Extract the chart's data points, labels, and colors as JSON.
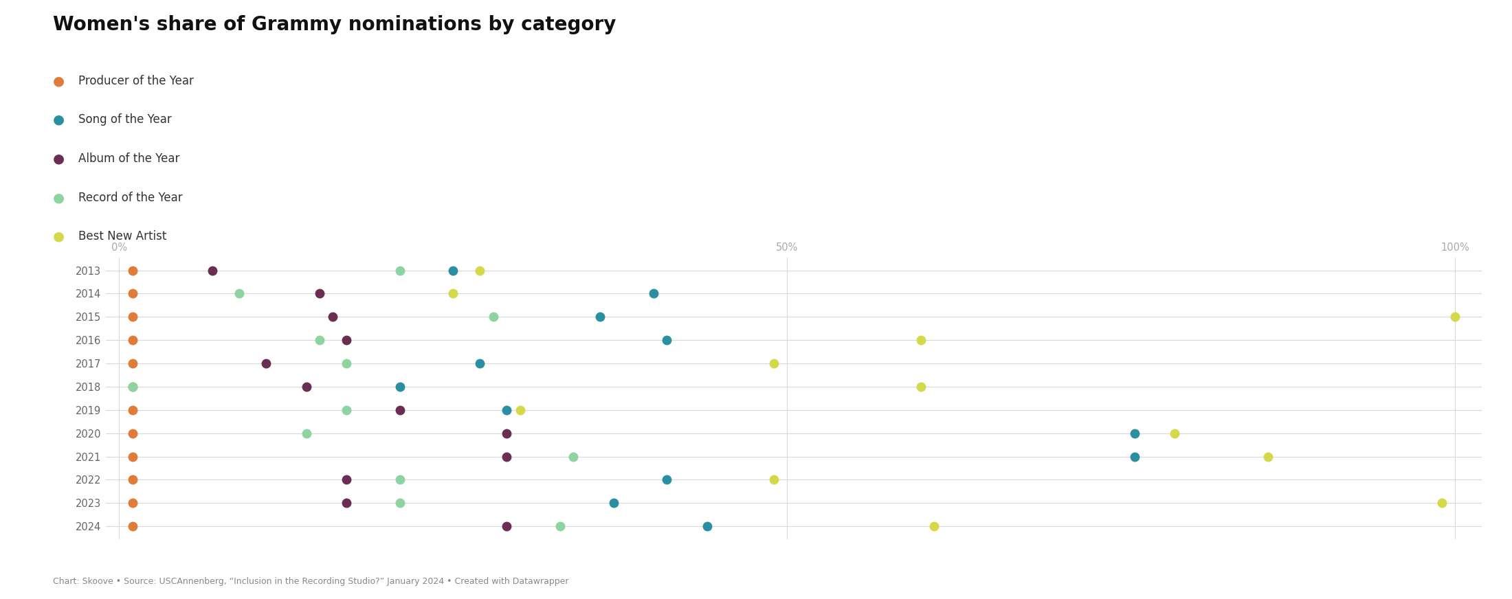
{
  "title": "Women's share of Grammy nominations by category",
  "subtitle": "Chart: Skoove • Source: USCAnnenberg, “Inclusion in the Recording Studio?” January 2024 • Created with Datawrapper",
  "categories": {
    "Producer of the Year": {
      "color": "#e07b39"
    },
    "Song of the Year": {
      "color": "#2a8fa0"
    },
    "Album of the Year": {
      "color": "#6b2d52"
    },
    "Record of the Year": {
      "color": "#8ed4a0"
    },
    "Best New Artist": {
      "color": "#d4d94a"
    }
  },
  "data": {
    "2013": {
      "Producer of the Year": 0.01,
      "Album of the Year": 0.07,
      "Record of the Year": 0.21,
      "Song of the Year": 0.25,
      "Best New Artist": 0.27
    },
    "2014": {
      "Producer of the Year": 0.01,
      "Record of the Year": 0.09,
      "Album of the Year": 0.15,
      "Best New Artist": 0.25,
      "Song of the Year": 0.4
    },
    "2015": {
      "Producer of the Year": 0.01,
      "Album of the Year": 0.16,
      "Record of the Year": 0.28,
      "Song of the Year": 0.36,
      "Best New Artist": 1.0
    },
    "2016": {
      "Producer of the Year": 0.01,
      "Record of the Year": 0.15,
      "Album of the Year": 0.17,
      "Song of the Year": 0.41,
      "Best New Artist": 0.6
    },
    "2017": {
      "Producer of the Year": 0.01,
      "Album of the Year": 0.11,
      "Record of the Year": 0.17,
      "Song of the Year": 0.27,
      "Best New Artist": 0.49
    },
    "2018": {
      "Producer of the Year": 0.01,
      "Record of the Year": 0.01,
      "Album of the Year": 0.14,
      "Song of the Year": 0.21,
      "Best New Artist": 0.6
    },
    "2019": {
      "Producer of the Year": 0.01,
      "Record of the Year": 0.17,
      "Album of the Year": 0.21,
      "Song of the Year": 0.29,
      "Best New Artist": 0.3
    },
    "2020": {
      "Producer of the Year": 0.01,
      "Record of the Year": 0.14,
      "Album of the Year": 0.29,
      "Song of the Year": 0.76,
      "Best New Artist": 0.79
    },
    "2021": {
      "Producer of the Year": 0.01,
      "Album of the Year": 0.29,
      "Record of the Year": 0.34,
      "Song of the Year": 0.76,
      "Best New Artist": 0.86
    },
    "2022": {
      "Producer of the Year": 0.01,
      "Album of the Year": 0.17,
      "Record of the Year": 0.21,
      "Song of the Year": 0.41,
      "Best New Artist": 0.49
    },
    "2023": {
      "Producer of the Year": 0.01,
      "Album of the Year": 0.17,
      "Record of the Year": 0.21,
      "Song of the Year": 0.37,
      "Best New Artist": 0.99
    },
    "2024": {
      "Producer of the Year": 0.01,
      "Album of the Year": 0.29,
      "Record of the Year": 0.33,
      "Song of the Year": 0.44,
      "Best New Artist": 0.61
    }
  },
  "years": [
    "2013",
    "2014",
    "2015",
    "2016",
    "2017",
    "2018",
    "2019",
    "2020",
    "2021",
    "2022",
    "2023",
    "2024"
  ],
  "background_color": "#ffffff",
  "grid_color": "#d8d8d8",
  "dot_size": 100,
  "title_fontsize": 20,
  "legend_fontsize": 12,
  "tick_fontsize": 10.5
}
